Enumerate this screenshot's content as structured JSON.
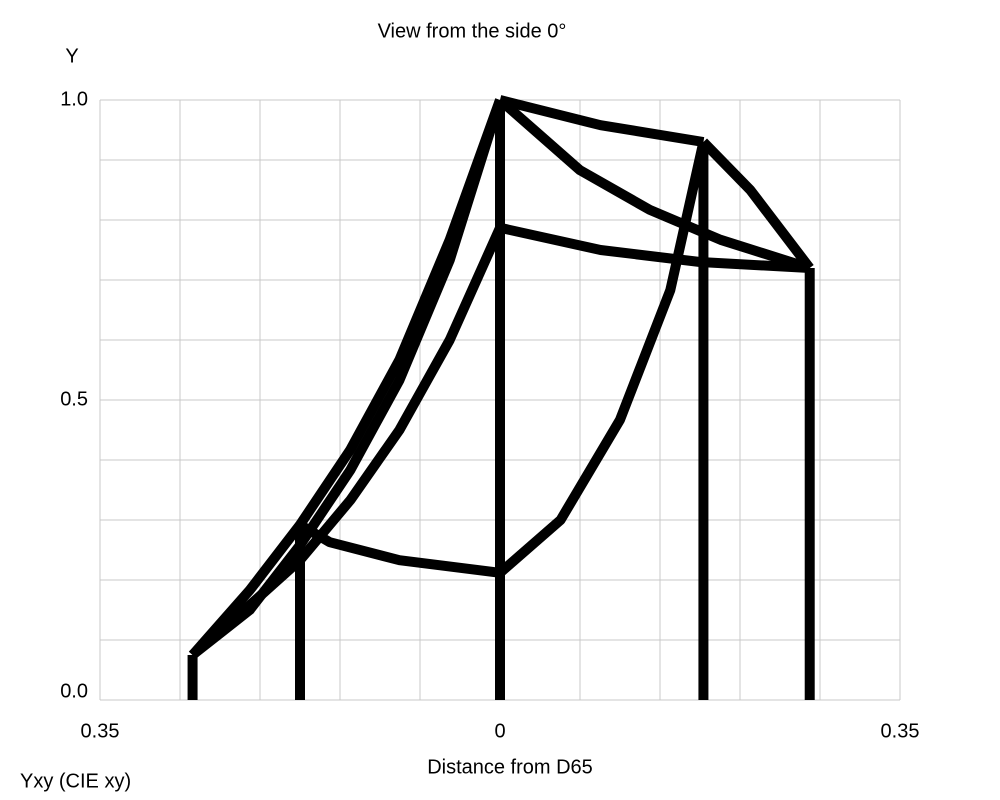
{
  "chart_data": {
    "type": "line",
    "title": "View from the side 0°",
    "y_label": "Y",
    "x_label": "Distance from D65",
    "annotation": "Yxy (CIE xy)",
    "xlim": [
      -0.35,
      0.35
    ],
    "ylim": [
      0,
      1
    ],
    "xticks": [
      {
        "value": -0.35,
        "label": "0.35"
      },
      0,
      0.35
    ],
    "yticks": [
      {
        "value": 0,
        "label": "0.0"
      },
      0.5,
      {
        "value": 1,
        "label": "1.0"
      }
    ],
    "x_gridlines": [
      -0.35,
      -0.28,
      -0.21,
      -0.14,
      -0.07,
      0,
      0.07,
      0.14,
      0.21,
      0.28,
      0.35
    ],
    "y_gridlines": [
      0,
      0.1,
      0.2,
      0.3,
      0.4,
      0.5,
      0.6,
      0.7,
      0.8,
      0.9,
      1
    ],
    "grid": true,
    "series": [
      {
        "color": "#000000",
        "x": [
          -0.269,
          -0.269
        ],
        "values": [
          0,
          0.075
        ]
      },
      {
        "color": "#000000",
        "x": [
          -0.175,
          -0.175
        ],
        "values": [
          0,
          0.292
        ]
      },
      {
        "color": "#000000",
        "x": [
          0,
          0
        ],
        "values": [
          0,
          1
        ]
      },
      {
        "color": "#000000",
        "x": [
          0.178,
          0.178
        ],
        "values": [
          0,
          0.93
        ]
      },
      {
        "color": "#000000",
        "x": [
          0.271,
          0.271
        ],
        "values": [
          0,
          0.72
        ]
      },
      {
        "color": "#000000",
        "x": [
          -0.269,
          -0.219,
          -0.175,
          -0.131,
          -0.088,
          -0.044,
          0
        ],
        "values": [
          0.075,
          0.15,
          0.258,
          0.383,
          0.533,
          0.733,
          1
        ]
      },
      {
        "color": "#000000",
        "x": [
          -0.269,
          -0.219,
          -0.175,
          -0.131,
          -0.088,
          -0.044,
          0
        ],
        "values": [
          0.075,
          0.158,
          0.233,
          0.333,
          0.45,
          0.6,
          0.787
        ]
      },
      {
        "color": "#000000",
        "x": [
          -0.269,
          -0.219,
          -0.175,
          -0.131,
          -0.088,
          -0.044,
          0
        ],
        "values": [
          0.075,
          0.183,
          0.292,
          0.417,
          0.567,
          0.767,
          1
        ]
      },
      {
        "color": "#000000",
        "x": [
          -0.175,
          -0.149,
          -0.088,
          0
        ],
        "values": [
          0.292,
          0.263,
          0.233,
          0.212
        ]
      },
      {
        "color": "#000000",
        "x": [
          0,
          0.053,
          0.105,
          0.149,
          0.178
        ],
        "values": [
          0.212,
          0.3,
          0.467,
          0.683,
          0.93
        ]
      },
      {
        "color": "#000000",
        "x": [
          0,
          0.088,
          0.178
        ],
        "values": [
          1,
          0.958,
          0.93
        ]
      },
      {
        "color": "#000000",
        "x": [
          0,
          0.07,
          0.131,
          0.193,
          0.271
        ],
        "values": [
          1,
          0.883,
          0.817,
          0.767,
          0.72
        ]
      },
      {
        "color": "#000000",
        "x": [
          0.178,
          0.219,
          0.271
        ],
        "values": [
          0.93,
          0.85,
          0.72
        ]
      },
      {
        "color": "#000000",
        "x": [
          0,
          0.088,
          0.175,
          0.271
        ],
        "values": [
          0.787,
          0.75,
          0.73,
          0.72
        ]
      }
    ]
  }
}
